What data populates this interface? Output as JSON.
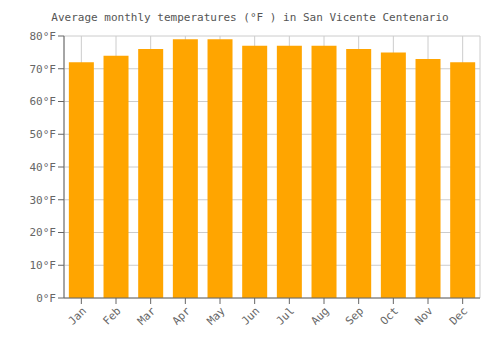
{
  "chart_data": {
    "type": "bar",
    "title": "Average monthly temperatures (°F ) in San Vicente Centenario",
    "categories": [
      "Jan",
      "Feb",
      "Mar",
      "Apr",
      "May",
      "Jun",
      "Jul",
      "Aug",
      "Sep",
      "Oct",
      "Nov",
      "Dec"
    ],
    "values": [
      72,
      74,
      76,
      79,
      79,
      77,
      77,
      77,
      76,
      75,
      73,
      72
    ],
    "color": "#FFA500",
    "ylim": [
      0,
      80
    ],
    "yticks": [
      {
        "value": 0,
        "label": "0°F"
      },
      {
        "value": 10,
        "label": "10°F"
      },
      {
        "value": 20,
        "label": "20°F"
      },
      {
        "value": 30,
        "label": "30°F"
      },
      {
        "value": 40,
        "label": "40°F"
      },
      {
        "value": 50,
        "label": "50°F"
      },
      {
        "value": 60,
        "label": "60°F"
      },
      {
        "value": 70,
        "label": "70°F"
      },
      {
        "value": 80,
        "label": "80°F"
      }
    ],
    "grid": true
  }
}
